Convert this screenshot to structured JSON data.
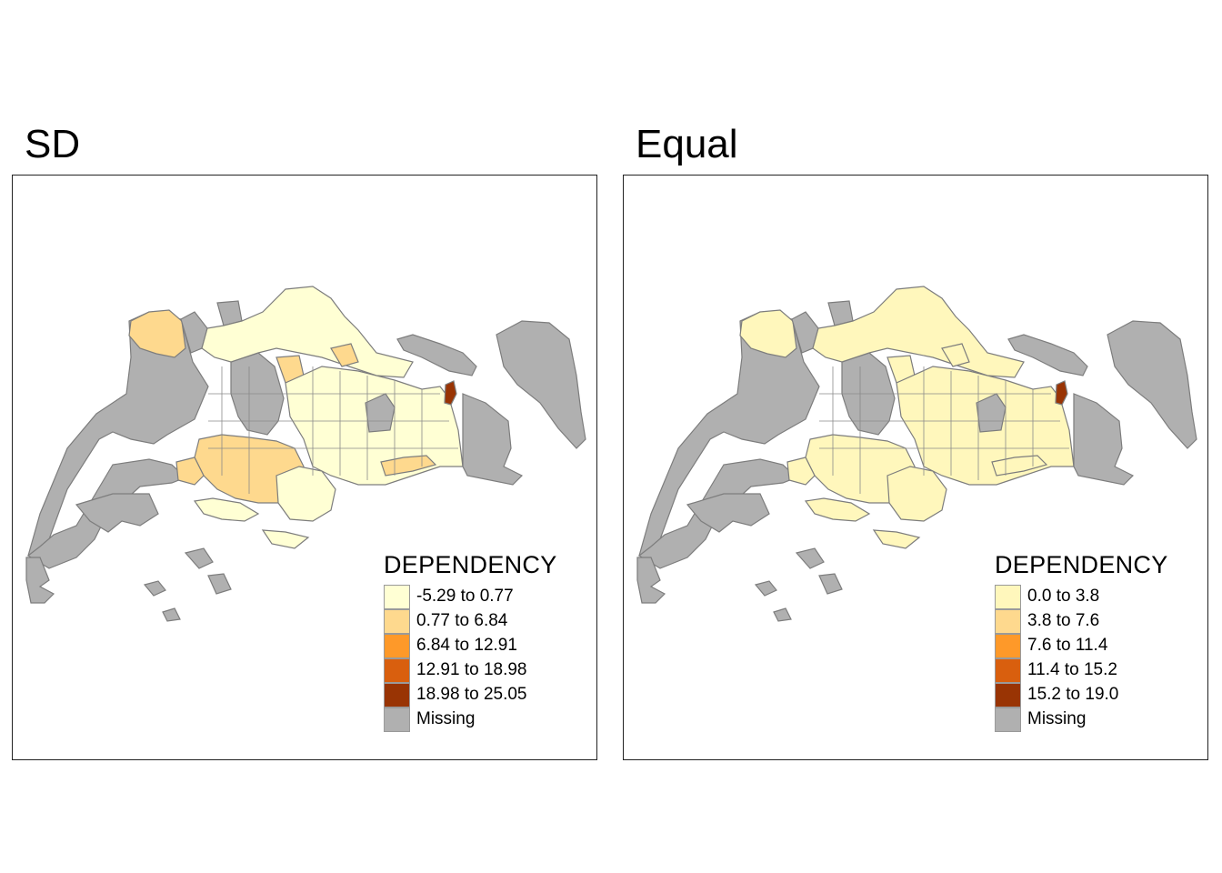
{
  "panels": [
    {
      "title": "SD",
      "legend": {
        "title": "DEPENDENCY",
        "items": [
          {
            "label": "-5.29 to 0.77",
            "color": "#ffffd4"
          },
          {
            "label": "0.77 to 6.84",
            "color": "#fed98e"
          },
          {
            "label": "6.84 to 12.91",
            "color": "#fe9929"
          },
          {
            "label": "12.91 to 18.98",
            "color": "#d95f0e"
          },
          {
            "label": "18.98 to 25.05",
            "color": "#993404"
          },
          {
            "label": "Missing",
            "color": "#b0b0b0"
          }
        ]
      }
    },
    {
      "title": "Equal",
      "legend": {
        "title": "DEPENDENCY",
        "items": [
          {
            "label": "0.0 to 3.8",
            "color": "#fff7bc"
          },
          {
            "label": "3.8 to 7.6",
            "color": "#fed98e"
          },
          {
            "label": "7.6 to 11.4",
            "color": "#fe9929"
          },
          {
            "label": "11.4 to 15.2",
            "color": "#d95f0e"
          },
          {
            "label": "15.2 to 19.0",
            "color": "#993404"
          },
          {
            "label": "Missing",
            "color": "#b0b0b0"
          }
        ]
      }
    }
  ]
}
